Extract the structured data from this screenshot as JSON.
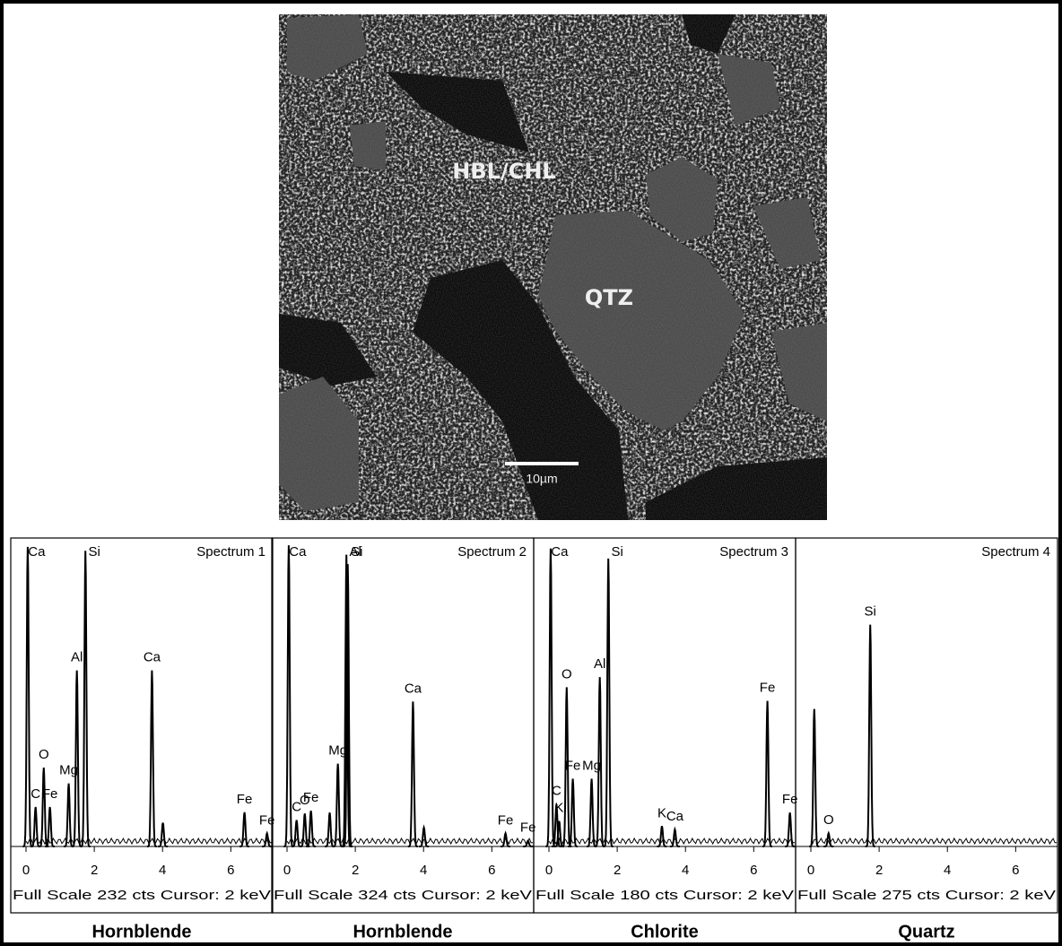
{
  "image": {
    "labels": [
      "HBL/CHL",
      "QTZ"
    ],
    "scale_bar": "10µm"
  },
  "chart_data": [
    {
      "type": "spectrum",
      "title": "Spectrum 1",
      "footer": "Full Scale 232 cts Cursor: 2 keV",
      "caption": "Hornblende",
      "xlim": [
        0,
        7.2
      ],
      "xticks": [
        0,
        2,
        4,
        6
      ],
      "ylim": [
        0,
        232
      ],
      "peaks": [
        {
          "label": "Ca",
          "keV": 0.05,
          "counts": 228
        },
        {
          "label": "C",
          "keV": 0.28,
          "counts": 30
        },
        {
          "label": "O",
          "keV": 0.52,
          "counts": 60
        },
        {
          "label": "Fe",
          "keV": 0.7,
          "counts": 30
        },
        {
          "label": "Mg",
          "keV": 1.25,
          "counts": 48
        },
        {
          "label": "Al",
          "keV": 1.49,
          "counts": 134
        },
        {
          "label": "Si",
          "keV": 1.74,
          "counts": 225
        },
        {
          "label": "Ca",
          "keV": 3.69,
          "counts": 134
        },
        {
          "label": null,
          "keV": 4.01,
          "counts": 18
        },
        {
          "label": "Fe",
          "keV": 6.4,
          "counts": 26
        },
        {
          "label": "Fe",
          "keV": 7.06,
          "counts": 10
        }
      ]
    },
    {
      "type": "spectrum",
      "title": "Spectrum 2",
      "footer": "Full Scale 324 cts Cursor: 2 keV",
      "caption": "Hornblende",
      "xlim": [
        0,
        7.2
      ],
      "xticks": [
        0,
        2,
        4,
        6
      ],
      "ylim": [
        0,
        324
      ],
      "peaks": [
        {
          "label": "Ca",
          "keV": 0.05,
          "counts": 320
        },
        {
          "label": "C",
          "keV": 0.28,
          "counts": 28
        },
        {
          "label": "O",
          "keV": 0.52,
          "counts": 35
        },
        {
          "label": "Fe",
          "keV": 0.7,
          "counts": 38
        },
        {
          "label": null,
          "keV": 1.25,
          "counts": 36
        },
        {
          "label": "Mg",
          "keV": 1.49,
          "counts": 88
        },
        {
          "label": "Al",
          "keV": 1.74,
          "counts": 310
        },
        {
          "label": "Si",
          "keV": 1.78,
          "counts": 300
        },
        {
          "label": "Ca",
          "keV": 3.69,
          "counts": 154
        },
        {
          "label": null,
          "keV": 4.01,
          "counts": 20
        },
        {
          "label": "Fe",
          "keV": 6.4,
          "counts": 14
        },
        {
          "label": "Fe",
          "keV": 7.06,
          "counts": 6
        }
      ]
    },
    {
      "type": "spectrum",
      "title": "Spectrum 3",
      "footer": "Full Scale 180 cts Cursor: 2 keV",
      "caption": "Chlorite",
      "xlim": [
        0,
        7.2
      ],
      "xticks": [
        0,
        2,
        4,
        6
      ],
      "ylim": [
        0,
        180
      ],
      "peaks": [
        {
          "label": "Ca",
          "keV": 0.05,
          "counts": 176
        },
        {
          "label": "C",
          "keV": 0.22,
          "counts": 25
        },
        {
          "label": "K",
          "keV": 0.3,
          "counts": 15
        },
        {
          "label": "O",
          "keV": 0.52,
          "counts": 94
        },
        {
          "label": "Fe",
          "keV": 0.7,
          "counts": 40
        },
        {
          "label": "Mg",
          "keV": 1.25,
          "counts": 40
        },
        {
          "label": "Al",
          "keV": 1.49,
          "counts": 100
        },
        {
          "label": "Si",
          "keV": 1.74,
          "counts": 170
        },
        {
          "label": "K",
          "keV": 3.31,
          "counts": 12
        },
        {
          "label": "Ca",
          "keV": 3.69,
          "counts": 10
        },
        {
          "label": "Fe",
          "keV": 6.4,
          "counts": 86
        },
        {
          "label": "Fe",
          "keV": 7.06,
          "counts": 20
        }
      ]
    },
    {
      "type": "spectrum",
      "title": "Spectrum 4",
      "footer": "Full Scale 275 cts Cursor: 2 keV",
      "caption": "Quartz",
      "xlim": [
        0,
        7.2
      ],
      "xticks": [
        0,
        2,
        4,
        6
      ],
      "ylim": [
        0,
        275
      ],
      "peaks": [
        {
          "label": null,
          "keV": 0.1,
          "counts": 124
        },
        {
          "label": "O",
          "keV": 0.52,
          "counts": 12
        },
        {
          "label": "Si",
          "keV": 1.74,
          "counts": 200
        }
      ]
    }
  ]
}
